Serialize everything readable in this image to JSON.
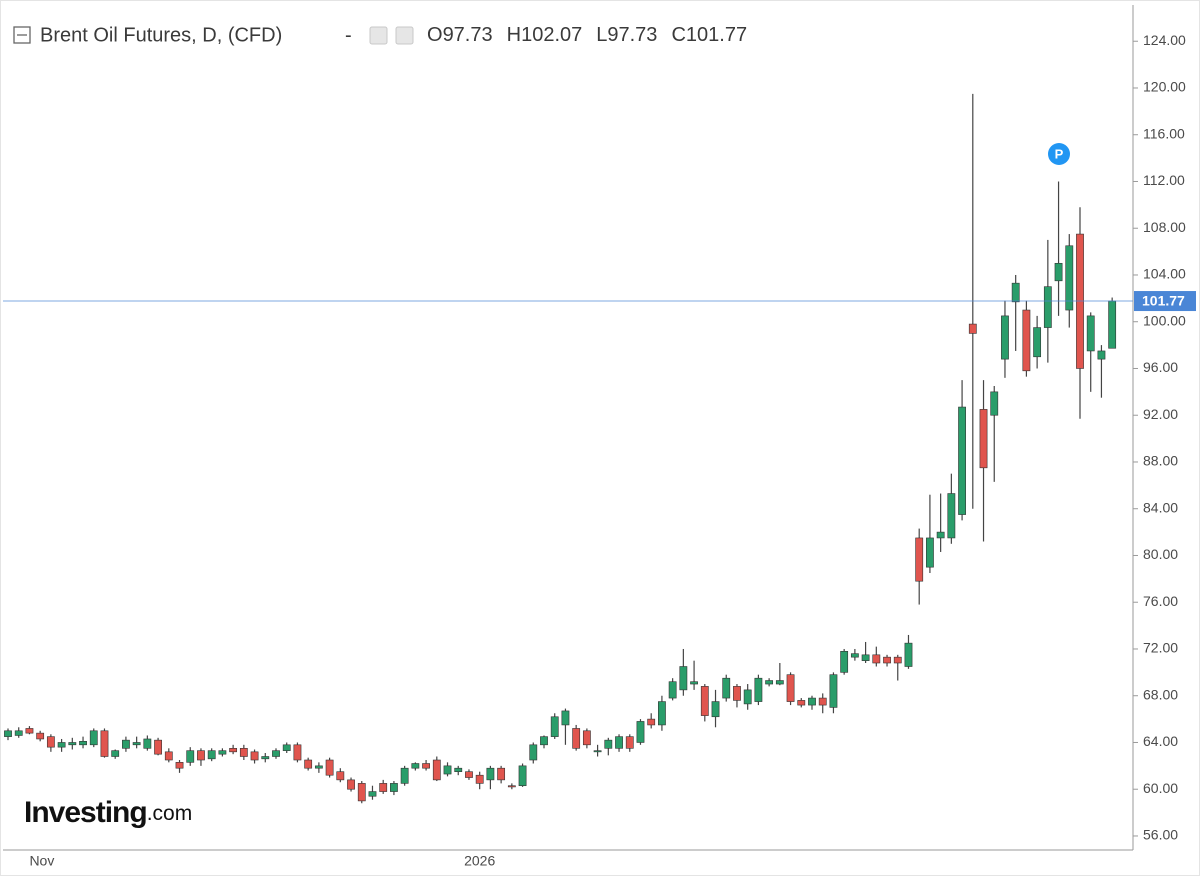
{
  "chart_data": {
    "type": "candlestick",
    "title": "Brent Oil Futures, D, (CFD)",
    "separator": "-",
    "ohlc": [
      {
        "label": "O",
        "value": 97.73
      },
      {
        "label": "H",
        "value": 102.07
      },
      {
        "label": "L",
        "value": 97.73
      },
      {
        "label": "C",
        "value": 101.77
      }
    ],
    "marker_label": "P",
    "brand": "Investing",
    "brand_suffix": ".com",
    "up_color": "#2a9d6a",
    "down_color": "#e0554e",
    "last_price": 101.77,
    "last_price_color": "#4a86d6",
    "categories": [
      null,
      null,
      "Nov",
      null,
      null,
      null,
      null,
      null,
      null,
      null,
      null,
      null,
      null,
      null,
      null,
      null,
      null,
      null,
      null,
      null,
      null,
      null,
      null,
      null,
      null,
      null,
      null,
      null,
      null,
      null,
      null,
      null,
      null,
      null,
      null,
      null,
      null,
      null,
      null,
      null,
      null,
      null,
      null,
      null,
      "2026",
      null,
      null,
      null,
      null,
      null,
      null,
      null,
      null,
      null,
      null,
      null,
      null,
      null,
      null,
      null,
      null,
      null,
      null,
      null,
      null,
      null,
      null,
      null,
      null,
      null,
      null,
      null,
      null,
      null,
      null,
      null,
      null,
      null,
      null,
      null,
      null,
      null,
      null,
      null,
      null,
      null,
      null,
      null,
      null,
      null,
      null,
      null,
      null,
      null,
      null,
      null,
      null,
      null,
      null,
      null,
      null,
      null,
      null,
      null
    ],
    "open": [
      64.5,
      64.6,
      65.2,
      64.8,
      64.5,
      63.6,
      63.8,
      63.8,
      63.8,
      65.0,
      62.8,
      63.5,
      63.8,
      63.5,
      64.2,
      63.2,
      62.3,
      62.3,
      63.3,
      62.6,
      63.0,
      63.5,
      63.5,
      63.2,
      62.6,
      62.8,
      63.3,
      63.8,
      62.5,
      61.8,
      62.5,
      61.5,
      60.8,
      60.5,
      59.4,
      60.5,
      59.8,
      60.5,
      61.8,
      62.2,
      62.5,
      61.3,
      61.5,
      61.5,
      61.2,
      60.8,
      61.8,
      60.3,
      60.3,
      62.5,
      63.8,
      64.5,
      65.5,
      65.2,
      65.0,
      63.2,
      63.5,
      63.5,
      64.5,
      64.0,
      66.0,
      65.5,
      67.8,
      68.5,
      69.0,
      68.8,
      66.2,
      67.8,
      68.8,
      67.3,
      67.5,
      69.0,
      69.0,
      69.8,
      67.6,
      67.2,
      67.8,
      67.0,
      70.0,
      71.3,
      71.0,
      71.5,
      71.3,
      71.3,
      70.5,
      81.5,
      79.0,
      81.5,
      81.5,
      83.5,
      99.8,
      92.5,
      92.0,
      96.8,
      101.7,
      101.0,
      97.0,
      99.5,
      103.5,
      101.0,
      107.5,
      97.5,
      96.8,
      97.73
    ],
    "high": [
      65.2,
      65.3,
      65.4,
      65.0,
      64.7,
      64.3,
      64.4,
      64.5,
      65.2,
      65.2,
      63.4,
      64.5,
      64.5,
      64.6,
      64.4,
      63.5,
      62.5,
      63.6,
      63.5,
      63.5,
      63.5,
      63.8,
      63.8,
      63.4,
      63.1,
      63.5,
      64.0,
      64.0,
      62.7,
      62.3,
      62.7,
      61.8,
      61.0,
      60.7,
      60.3,
      60.8,
      60.7,
      62.0,
      62.3,
      62.5,
      62.8,
      62.3,
      62.0,
      61.7,
      61.5,
      62.0,
      62.0,
      60.5,
      62.2,
      64.0,
      64.6,
      66.5,
      66.9,
      65.5,
      65.2,
      63.8,
      64.4,
      64.7,
      64.7,
      66.0,
      66.5,
      68.0,
      69.5,
      72.0,
      71.0,
      69.0,
      68.5,
      69.8,
      69.0,
      69.0,
      69.8,
      69.5,
      70.8,
      70.0,
      67.8,
      68.0,
      68.2,
      70.0,
      72.0,
      72.0,
      72.6,
      72.2,
      71.5,
      71.5,
      73.2,
      82.3,
      85.2,
      85.3,
      87.0,
      95.0,
      119.5,
      95.0,
      94.5,
      101.8,
      104.0,
      101.8,
      100.5,
      107.0,
      112.0,
      107.5,
      109.8,
      100.8,
      98.0,
      102.07
    ],
    "low": [
      64.2,
      64.4,
      64.7,
      64.1,
      63.2,
      63.2,
      63.4,
      63.5,
      63.6,
      62.7,
      62.6,
      63.2,
      63.5,
      63.3,
      62.9,
      62.3,
      61.4,
      62.0,
      62.0,
      62.4,
      62.8,
      63.0,
      62.5,
      62.2,
      62.3,
      62.6,
      63.1,
      62.3,
      61.6,
      61.4,
      61.0,
      60.6,
      59.8,
      58.8,
      59.1,
      59.6,
      59.5,
      60.3,
      61.6,
      61.6,
      60.7,
      61.1,
      61.2,
      60.8,
      60.0,
      60.0,
      60.5,
      60.0,
      60.2,
      62.2,
      63.5,
      64.3,
      63.8,
      63.3,
      63.5,
      62.8,
      62.9,
      63.2,
      63.2,
      63.8,
      65.2,
      65.0,
      67.6,
      68.0,
      68.5,
      65.8,
      65.3,
      67.5,
      67.0,
      66.8,
      67.2,
      68.8,
      68.9,
      67.2,
      67.0,
      66.8,
      66.5,
      66.5,
      69.8,
      71.0,
      70.8,
      70.5,
      70.5,
      69.3,
      70.3,
      75.8,
      78.5,
      80.3,
      81.0,
      83.0,
      84.0,
      81.2,
      86.3,
      95.2,
      97.5,
      95.3,
      96.0,
      96.5,
      100.5,
      99.5,
      91.7,
      94.0,
      93.5,
      97.73
    ],
    "close": [
      65.0,
      65.0,
      64.8,
      64.3,
      63.6,
      64.0,
      64.0,
      64.1,
      65.0,
      62.8,
      63.3,
      64.2,
      64.0,
      64.3,
      63.0,
      62.5,
      61.8,
      63.3,
      62.5,
      63.3,
      63.3,
      63.2,
      62.8,
      62.5,
      62.8,
      63.3,
      63.8,
      62.5,
      61.8,
      62.0,
      61.2,
      60.8,
      60.0,
      59.0,
      59.8,
      59.8,
      60.5,
      61.8,
      62.2,
      61.8,
      60.8,
      62.0,
      61.8,
      61.0,
      60.5,
      61.8,
      60.8,
      60.2,
      62.0,
      63.8,
      64.5,
      66.2,
      66.7,
      63.5,
      63.8,
      63.3,
      64.2,
      64.5,
      63.5,
      65.8,
      65.5,
      67.5,
      69.2,
      70.5,
      69.2,
      66.3,
      67.5,
      69.5,
      67.6,
      68.5,
      69.5,
      69.3,
      69.3,
      67.5,
      67.2,
      67.8,
      67.2,
      69.8,
      71.8,
      71.6,
      71.5,
      70.8,
      70.8,
      70.8,
      72.5,
      77.8,
      81.5,
      82.0,
      85.3,
      92.7,
      99.0,
      87.5,
      94.0,
      100.5,
      103.3,
      95.8,
      99.5,
      103.0,
      105.0,
      106.5,
      96.0,
      100.5,
      97.5,
      101.77
    ],
    "ylim": [
      54.8,
      127.1
    ],
    "yticks": [
      {
        "value": 56,
        "label": "56.00"
      },
      {
        "value": 60,
        "label": "60.00"
      },
      {
        "value": 64,
        "label": "64.00"
      },
      {
        "value": 68,
        "label": "68.00"
      },
      {
        "value": 72,
        "label": "72.00"
      },
      {
        "value": 76,
        "label": "76.00"
      },
      {
        "value": 80,
        "label": "80.00"
      },
      {
        "value": 84,
        "label": "84.00"
      },
      {
        "value": 88,
        "label": "88.00"
      },
      {
        "value": 92,
        "label": "92.00"
      },
      {
        "value": 96,
        "label": "96.00"
      },
      {
        "value": 100,
        "label": "100.00"
      },
      {
        "value": 104,
        "label": "104.00"
      },
      {
        "value": 108,
        "label": "108.00"
      },
      {
        "value": 112,
        "label": "112.00"
      },
      {
        "value": 116,
        "label": "116.00"
      },
      {
        "value": 120,
        "label": "120.00"
      },
      {
        "value": 124,
        "label": "124.00"
      }
    ],
    "grid": false
  }
}
